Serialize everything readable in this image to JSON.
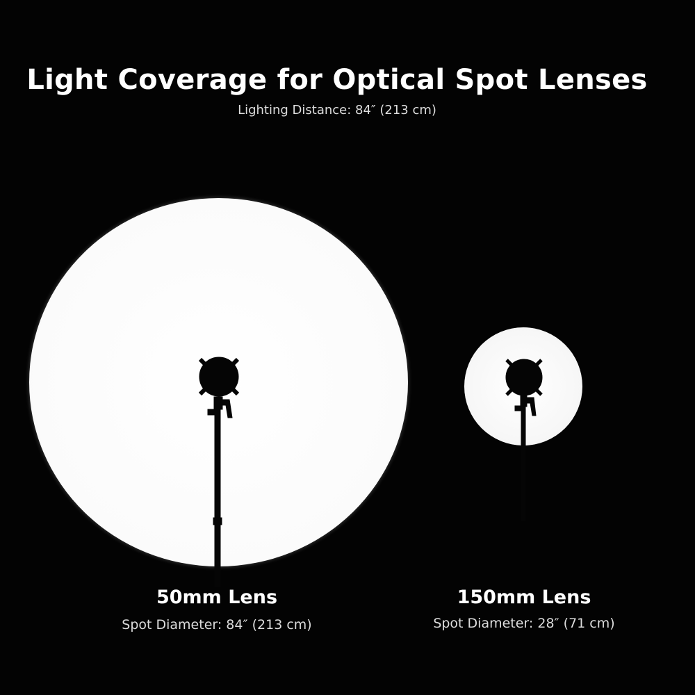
{
  "header": {
    "title": "Light Coverage for Optical Spot Lenses",
    "subtitle": "Lighting Distance: 84″ (213 cm)"
  },
  "lenses": [
    {
      "name": "50mm Lens",
      "spot": "Spot Diameter: 84″ (213 cm)"
    },
    {
      "name": "150mm Lens",
      "spot": "Spot Diameter: 28″ (71 cm)"
    }
  ],
  "colors": {
    "background": "#030303",
    "spot": "#ffffff",
    "text": "#ffffff"
  }
}
